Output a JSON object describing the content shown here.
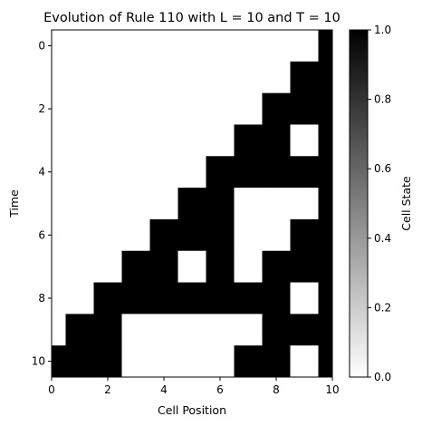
{
  "chart_data": {
    "type": "heatmap",
    "title": "Evolution of Rule 110 with L = 10 and T = 10",
    "xlabel": "Cell Position",
    "ylabel": "Time",
    "xlim": [
      0,
      10
    ],
    "ylim": [
      10.5,
      -0.5
    ],
    "x_ticks": [
      0,
      2,
      4,
      6,
      8,
      10
    ],
    "y_ticks": [
      0,
      2,
      4,
      6,
      8,
      10
    ],
    "colorbar": {
      "label": "Cell State",
      "range": [
        0,
        1
      ],
      "ticks": [
        "0.0",
        "0.2",
        "0.4",
        "0.6",
        "0.8",
        "1.0"
      ],
      "colormap": "gray_r"
    },
    "colors": {
      "on": "#000000",
      "off": "#ffffff"
    },
    "grid": false,
    "rows": [
      [
        0,
        0,
        0,
        0,
        0,
        0,
        0,
        0,
        0,
        0,
        1
      ],
      [
        0,
        0,
        0,
        0,
        0,
        0,
        0,
        0,
        0,
        1,
        1
      ],
      [
        0,
        0,
        0,
        0,
        0,
        0,
        0,
        0,
        1,
        1,
        1
      ],
      [
        0,
        0,
        0,
        0,
        0,
        0,
        0,
        1,
        1,
        0,
        1
      ],
      [
        0,
        0,
        0,
        0,
        0,
        0,
        1,
        1,
        1,
        1,
        1
      ],
      [
        0,
        0,
        0,
        0,
        0,
        1,
        1,
        0,
        0,
        0,
        1
      ],
      [
        0,
        0,
        0,
        0,
        1,
        1,
        1,
        0,
        0,
        1,
        1
      ],
      [
        0,
        0,
        0,
        1,
        1,
        0,
        1,
        0,
        1,
        1,
        1
      ],
      [
        0,
        0,
        1,
        1,
        1,
        1,
        1,
        1,
        1,
        0,
        1
      ],
      [
        0,
        1,
        1,
        0,
        0,
        0,
        0,
        0,
        1,
        1,
        1
      ],
      [
        1,
        1,
        1,
        0,
        0,
        0,
        0,
        1,
        1,
        0,
        1
      ]
    ]
  }
}
